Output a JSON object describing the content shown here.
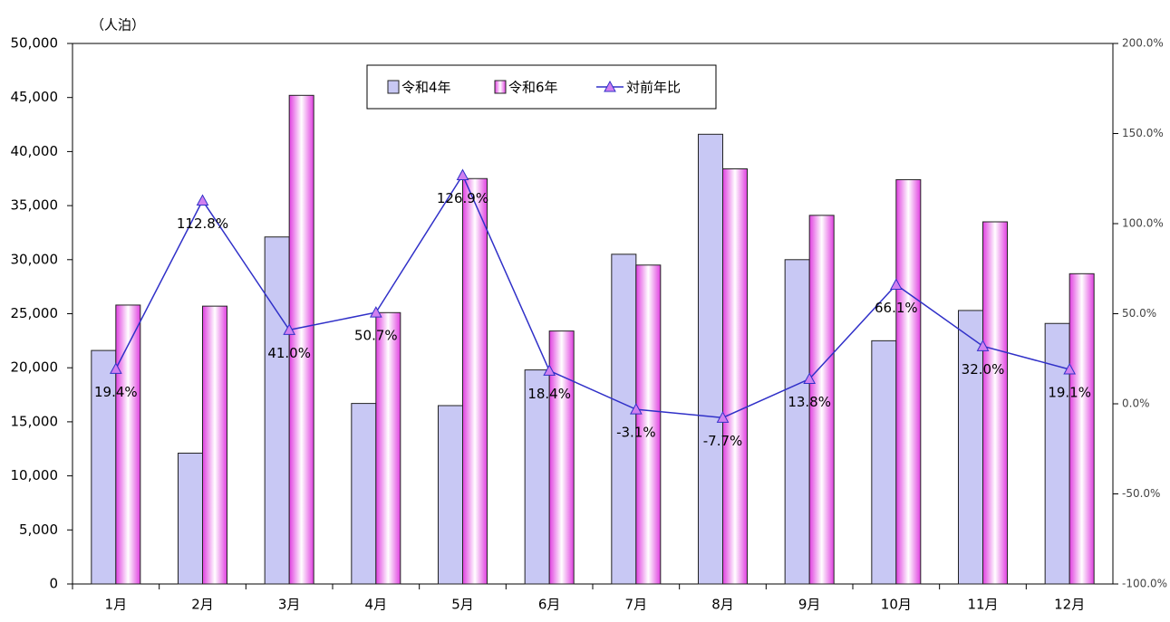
{
  "chart_data": {
    "type": "bar_line",
    "y_label": "（人泊）",
    "categories": [
      "1月",
      "2月",
      "3月",
      "4月",
      "5月",
      "6月",
      "7月",
      "8月",
      "9月",
      "10月",
      "11月",
      "12月"
    ],
    "series": [
      {
        "name": "令和4年",
        "type": "bar",
        "color": "#c8c8f4",
        "values": [
          21600,
          12100,
          32100,
          16700,
          16500,
          19800,
          30500,
          41600,
          30000,
          22500,
          25300,
          24100
        ]
      },
      {
        "name": "令和6年",
        "type": "bar",
        "color": "#e040e0",
        "values": [
          25800,
          25700,
          45200,
          25100,
          37500,
          23400,
          29500,
          38400,
          34100,
          37400,
          33500,
          28700
        ]
      },
      {
        "name": "対前年比",
        "type": "line",
        "axis": "y2",
        "color": "#3030c8",
        "marker_color": "#d080f0",
        "values": [
          19.4,
          112.8,
          41.0,
          50.7,
          126.9,
          18.4,
          -3.1,
          -7.7,
          13.8,
          66.1,
          32.0,
          19.1
        ],
        "value_labels": [
          "19.4%",
          "112.8%",
          "41.0%",
          "50.7%",
          "126.9%",
          "18.4%",
          "-3.1%",
          "-7.7%",
          "13.8%",
          "66.1%",
          "32.0%",
          "19.1%"
        ]
      }
    ],
    "ylim": [
      0,
      50000
    ],
    "yticks": [
      0,
      {
        "value": 5000,
        "label": "5,000"
      },
      {
        "value": 10000,
        "label": "10,000"
      },
      {
        "value": 15000,
        "label": "15,000"
      },
      {
        "value": 20000,
        "label": "20,000"
      },
      {
        "value": 25000,
        "label": "25,000"
      },
      {
        "value": 30000,
        "label": "30,000"
      },
      {
        "value": 35000,
        "label": "35,000"
      },
      {
        "value": 40000,
        "label": "40,000"
      },
      {
        "value": 45000,
        "label": "45,000"
      },
      {
        "value": 50000,
        "label": "50,000"
      }
    ],
    "y2lim": [
      -100,
      200
    ],
    "y2ticks": [
      {
        "value": -100,
        "label": "-100.0%"
      },
      {
        "value": -50,
        "label": "-50.0%"
      },
      {
        "value": 0,
        "label": "0.0%"
      },
      {
        "value": 50,
        "label": "50.0%"
      },
      {
        "value": 100,
        "label": "100.0%"
      },
      {
        "value": 150,
        "label": "150.0%"
      },
      {
        "value": 200,
        "label": "200.0%"
      }
    ],
    "grid": false,
    "legend": "top"
  }
}
